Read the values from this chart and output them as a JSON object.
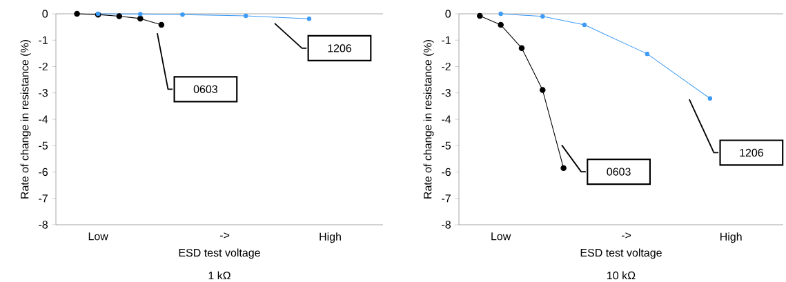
{
  "chart_data": [
    {
      "type": "line",
      "title": "1 kΩ",
      "xlabel": "ESD test voltage",
      "ylabel": "Rate of change in resistance (%)",
      "categories": [
        null,
        "Low",
        null,
        null,
        null,
        null,
        null,
        "->",
        null,
        null,
        null,
        null,
        "High"
      ],
      "ylim": [
        -8,
        0
      ],
      "yticks": [
        0,
        -1,
        -2,
        -3,
        -4,
        -5,
        -6,
        -7,
        -8
      ],
      "marker": "circle",
      "line_style": "solid",
      "series": [
        {
          "name": "0603",
          "color": "#000000",
          "values": [
            0,
            -0.03,
            -0.09,
            -0.18,
            -0.42,
            null,
            null,
            null,
            null,
            null,
            null,
            null,
            null
          ]
        },
        {
          "name": "1206",
          "color": "#3d9bf5",
          "values": [
            null,
            0,
            null,
            -0.01,
            null,
            -0.03,
            null,
            null,
            -0.08,
            null,
            null,
            -0.19,
            null
          ]
        }
      ]
    },
    {
      "type": "line",
      "title": "10 kΩ",
      "xlabel": "ESD test voltage",
      "ylabel": "Rate of change in resistance (%)",
      "categories": [
        null,
        "Low",
        null,
        null,
        null,
        null,
        null,
        "->",
        null,
        null,
        null,
        null,
        "High"
      ],
      "ylim": [
        -8,
        0
      ],
      "yticks": [
        0,
        -1,
        -2,
        -3,
        -4,
        -5,
        -6,
        -7,
        -8
      ],
      "marker": "circle",
      "line_style": "solid",
      "series": [
        {
          "name": "0603",
          "color": "#000000",
          "values": [
            -0.08,
            -0.42,
            -1.3,
            -2.89,
            -5.85,
            null,
            null,
            null,
            null,
            null,
            null,
            null,
            null
          ]
        },
        {
          "name": "1206",
          "color": "#3d9bf5",
          "values": [
            null,
            0,
            null,
            -0.1,
            null,
            -0.42,
            null,
            null,
            -1.52,
            null,
            null,
            -3.21,
            null
          ]
        }
      ]
    }
  ]
}
